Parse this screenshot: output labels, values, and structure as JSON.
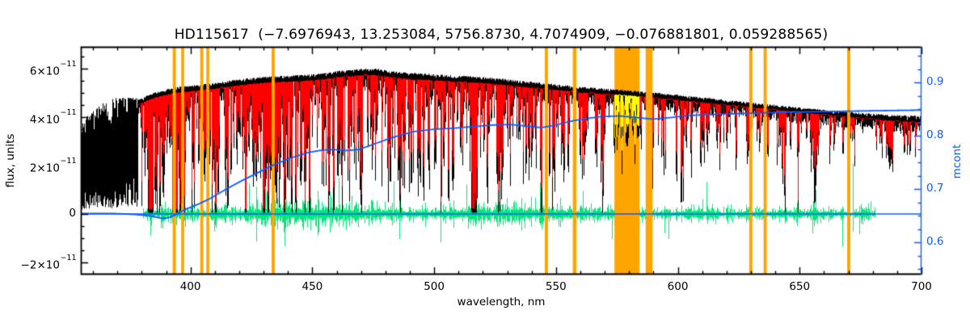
{
  "colors": {
    "background": "#ffffff",
    "axis": "#000000",
    "spectrum_observed": "#000000",
    "spectrum_model": "#ff0000",
    "residuals": "#00e878",
    "continuum_fit": "#0b5cff",
    "masked_region": "#ffa500",
    "highlight_spectrum": "#ffff00"
  },
  "chart_data": {
    "type": "line",
    "title": "HD115617  (−7.6976943, 13.253084, 5756.8730, 4.7074909, −0.076881801, 0.059288565)",
    "xlabel": "wavelength, nm",
    "ylabel_left": "flux, units",
    "ylabel_right": "mcont",
    "x_range": [
      355,
      700
    ],
    "x_ticks": [
      400,
      450,
      500,
      550,
      600,
      650,
      700
    ],
    "y_left_range_1e11": [
      -2.5,
      6.9
    ],
    "y_left_ticks": [
      {
        "value": 6,
        "mantissa": "6×10",
        "exponent": "−11"
      },
      {
        "value": 4,
        "mantissa": "4×10",
        "exponent": "−11"
      },
      {
        "value": 2,
        "mantissa": "2×10",
        "exponent": "−11"
      },
      {
        "value": 0,
        "mantissa": "0",
        "exponent": ""
      },
      {
        "value": -2,
        "mantissa": "−2×10",
        "exponent": "−11"
      }
    ],
    "y_right_range": [
      0.5394,
      0.9667
    ],
    "y_right_ticks": [
      0.9,
      0.8,
      0.7,
      0.6
    ],
    "series": [
      {
        "name": "observed spectrum",
        "color_key": "spectrum_observed"
      },
      {
        "name": "model spectrum",
        "color_key": "spectrum_model"
      },
      {
        "name": "residuals",
        "color_key": "residuals"
      },
      {
        "name": "continuum mcont",
        "color_key": "continuum_fit",
        "axis": "right"
      },
      {
        "name": "zero line",
        "color_key": "continuum_fit"
      }
    ],
    "model_start_nm": 378.5,
    "residual_span_nm": [
      380.5,
      681
    ],
    "continuum_1e11": [
      [
        355,
        3.1
      ],
      [
        360,
        3.5
      ],
      [
        365,
        3.8
      ],
      [
        370,
        4.0
      ],
      [
        374,
        4.1
      ],
      [
        378,
        4.5
      ],
      [
        382,
        4.7
      ],
      [
        386,
        4.85
      ],
      [
        390,
        4.95
      ],
      [
        395,
        5.05
      ],
      [
        400,
        5.1
      ],
      [
        405,
        5.15
      ],
      [
        410,
        5.2
      ],
      [
        415,
        5.28
      ],
      [
        420,
        5.35
      ],
      [
        425,
        5.4
      ],
      [
        430,
        5.45
      ],
      [
        435,
        5.48
      ],
      [
        440,
        5.5
      ],
      [
        445,
        5.52
      ],
      [
        450,
        5.55
      ],
      [
        455,
        5.6
      ],
      [
        460,
        5.68
      ],
      [
        465,
        5.72
      ],
      [
        470,
        5.76
      ],
      [
        475,
        5.78
      ],
      [
        480,
        5.72
      ],
      [
        485,
        5.65
      ],
      [
        490,
        5.6
      ],
      [
        495,
        5.58
      ],
      [
        500,
        5.55
      ],
      [
        505,
        5.52
      ],
      [
        510,
        5.5
      ],
      [
        515,
        5.47
      ],
      [
        520,
        5.44
      ],
      [
        525,
        5.4
      ],
      [
        530,
        5.35
      ],
      [
        535,
        5.3
      ],
      [
        540,
        5.25
      ],
      [
        545,
        5.2
      ],
      [
        550,
        5.15
      ],
      [
        555,
        5.1
      ],
      [
        560,
        5.05
      ],
      [
        565,
        5.02
      ],
      [
        570,
        4.98
      ],
      [
        575,
        4.95
      ],
      [
        580,
        4.92
      ],
      [
        585,
        4.88
      ],
      [
        590,
        4.83
      ],
      [
        595,
        4.78
      ],
      [
        600,
        4.73
      ],
      [
        605,
        4.68
      ],
      [
        610,
        4.63
      ],
      [
        615,
        4.58
      ],
      [
        620,
        4.53
      ],
      [
        625,
        4.48
      ],
      [
        630,
        4.43
      ],
      [
        635,
        4.38
      ],
      [
        640,
        4.33
      ],
      [
        645,
        4.28
      ],
      [
        650,
        4.23
      ],
      [
        655,
        4.18
      ],
      [
        660,
        4.13
      ],
      [
        665,
        4.08
      ],
      [
        670,
        4.03
      ],
      [
        675,
        3.98
      ],
      [
        680,
        3.94
      ],
      [
        685,
        3.9
      ],
      [
        690,
        3.86
      ],
      [
        695,
        3.83
      ],
      [
        700,
        3.8
      ]
    ],
    "mcont_points": [
      [
        355,
        0.654
      ],
      [
        368,
        0.654
      ],
      [
        378,
        0.652
      ],
      [
        384,
        0.649
      ],
      [
        388,
        0.645
      ],
      [
        391,
        0.646
      ],
      [
        394,
        0.652
      ],
      [
        398,
        0.662
      ],
      [
        403,
        0.671
      ],
      [
        408,
        0.682
      ],
      [
        414,
        0.698
      ],
      [
        420,
        0.713
      ],
      [
        427,
        0.729
      ],
      [
        434,
        0.745
      ],
      [
        441,
        0.758
      ],
      [
        448,
        0.768
      ],
      [
        454,
        0.773
      ],
      [
        459,
        0.774
      ],
      [
        464,
        0.772
      ],
      [
        469,
        0.774
      ],
      [
        474,
        0.782
      ],
      [
        480,
        0.792
      ],
      [
        486,
        0.801
      ],
      [
        492,
        0.808
      ],
      [
        500,
        0.812
      ],
      [
        508,
        0.814
      ],
      [
        516,
        0.817
      ],
      [
        524,
        0.82
      ],
      [
        531,
        0.821
      ],
      [
        538,
        0.818
      ],
      [
        544,
        0.815
      ],
      [
        550,
        0.82
      ],
      [
        556,
        0.827
      ],
      [
        562,
        0.832
      ],
      [
        569,
        0.836
      ],
      [
        576,
        0.837
      ],
      [
        583,
        0.834
      ],
      [
        590,
        0.831
      ],
      [
        597,
        0.834
      ],
      [
        605,
        0.838
      ],
      [
        615,
        0.84
      ],
      [
        628,
        0.842
      ],
      [
        642,
        0.844
      ],
      [
        656,
        0.845
      ],
      [
        670,
        0.846
      ],
      [
        685,
        0.847
      ],
      [
        700,
        0.848
      ]
    ],
    "masked_regions": [
      {
        "from": 392.7,
        "to": 394.0
      },
      {
        "from": 396.2,
        "to": 397.4
      },
      {
        "from": 404.0,
        "to": 405.2
      },
      {
        "from": 406.5,
        "to": 407.7
      },
      {
        "from": 433.3,
        "to": 434.6
      },
      {
        "from": 545.4,
        "to": 546.7
      },
      {
        "from": 556.9,
        "to": 558.4
      },
      {
        "from": 574.0,
        "to": 584.3,
        "highlight": true
      },
      {
        "from": 586.8,
        "to": 589.6
      },
      {
        "from": 629.3,
        "to": 630.6
      },
      {
        "from": 635.2,
        "to": 636.5
      },
      {
        "from": 669.5,
        "to": 670.8
      }
    ],
    "strong_lines": [
      {
        "wl": 383.2,
        "w": 1.6,
        "d": 0.55,
        "e": 0.25
      },
      {
        "wl": 388.9,
        "w": 1.1,
        "d": 0.5,
        "e": 0.3
      },
      {
        "wl": 393.4,
        "w": 1.5,
        "d": 0.8,
        "e": 0.17
      },
      {
        "wl": 396.8,
        "w": 1.4,
        "d": 0.78,
        "e": 0.17
      },
      {
        "wl": 404.6,
        "w": 0.7,
        "d": 0.45,
        "e": 0.15
      },
      {
        "wl": 410.2,
        "w": 1.0,
        "d": 0.6,
        "e": 0.2
      },
      {
        "wl": 414.4,
        "w": 0.6,
        "d": 0.4,
        "e": 0.1
      },
      {
        "wl": 422.7,
        "w": 0.9,
        "d": 0.6,
        "e": 0.2
      },
      {
        "wl": 427.2,
        "w": 0.7,
        "d": 0.45,
        "e": 0.12
      },
      {
        "wl": 430.8,
        "w": 1.3,
        "d": 0.55,
        "e": 0.15
      },
      {
        "wl": 434.0,
        "w": 1.0,
        "d": 0.6,
        "e": 0.2
      },
      {
        "wl": 438.4,
        "w": 0.9,
        "d": 0.5,
        "e": 0.15
      },
      {
        "wl": 448.2,
        "w": 0.6,
        "d": 0.35,
        "e": 0.1
      },
      {
        "wl": 486.1,
        "w": 0.9,
        "d": 0.45,
        "e": 0.3
      },
      {
        "wl": 495.8,
        "w": 0.5,
        "d": 0.3,
        "e": 0.1
      },
      {
        "wl": 516.8,
        "w": 1.3,
        "d": 0.5,
        "e": 0.22
      },
      {
        "wl": 526.9,
        "w": 0.6,
        "d": 0.4,
        "e": 0.15
      },
      {
        "wl": 539.0,
        "w": 0.6,
        "d": 0.3,
        "e": 0.1
      },
      {
        "wl": 552.8,
        "w": 0.7,
        "d": 0.35,
        "e": 0.12
      },
      {
        "wl": 561.0,
        "w": 0.5,
        "d": 0.25,
        "e": 0.08
      },
      {
        "wl": 589.2,
        "w": 0.9,
        "d": 0.5,
        "e": 0.3
      },
      {
        "wl": 610.3,
        "w": 0.5,
        "d": 0.25,
        "e": 0.08
      },
      {
        "wl": 612.2,
        "w": 0.6,
        "d": 0.3,
        "e": 0.1
      },
      {
        "wl": 616.2,
        "w": 0.6,
        "d": 0.28,
        "e": 0.1
      },
      {
        "wl": 630.0,
        "w": 0.5,
        "d": 0.25,
        "e": 0.08
      },
      {
        "wl": 644.0,
        "w": 0.6,
        "d": 0.3,
        "e": 0.1
      },
      {
        "wl": 649.5,
        "w": 0.5,
        "d": 0.25,
        "e": 0.08
      },
      {
        "wl": 656.3,
        "w": 1.1,
        "d": 0.55,
        "e": 0.3
      },
      {
        "wl": 667.8,
        "w": 0.5,
        "d": 0.22,
        "e": 0.08
      },
      {
        "wl": 686.9,
        "w": 1.7,
        "d": 0.3,
        "e": 0.12
      }
    ],
    "residual_spikes": [
      {
        "wl": 430.7,
        "amp": 1.2
      },
      {
        "wl": 460.8,
        "amp": 1.5
      },
      {
        "wl": 517.2,
        "amp": 1.2
      },
      {
        "wl": 543.5,
        "amp": 1.3
      },
      {
        "wl": 588.8,
        "amp": 1.2
      },
      {
        "wl": 656.5,
        "amp": 1.0
      },
      {
        "wl": 671.8,
        "amp": 2.1
      }
    ]
  }
}
